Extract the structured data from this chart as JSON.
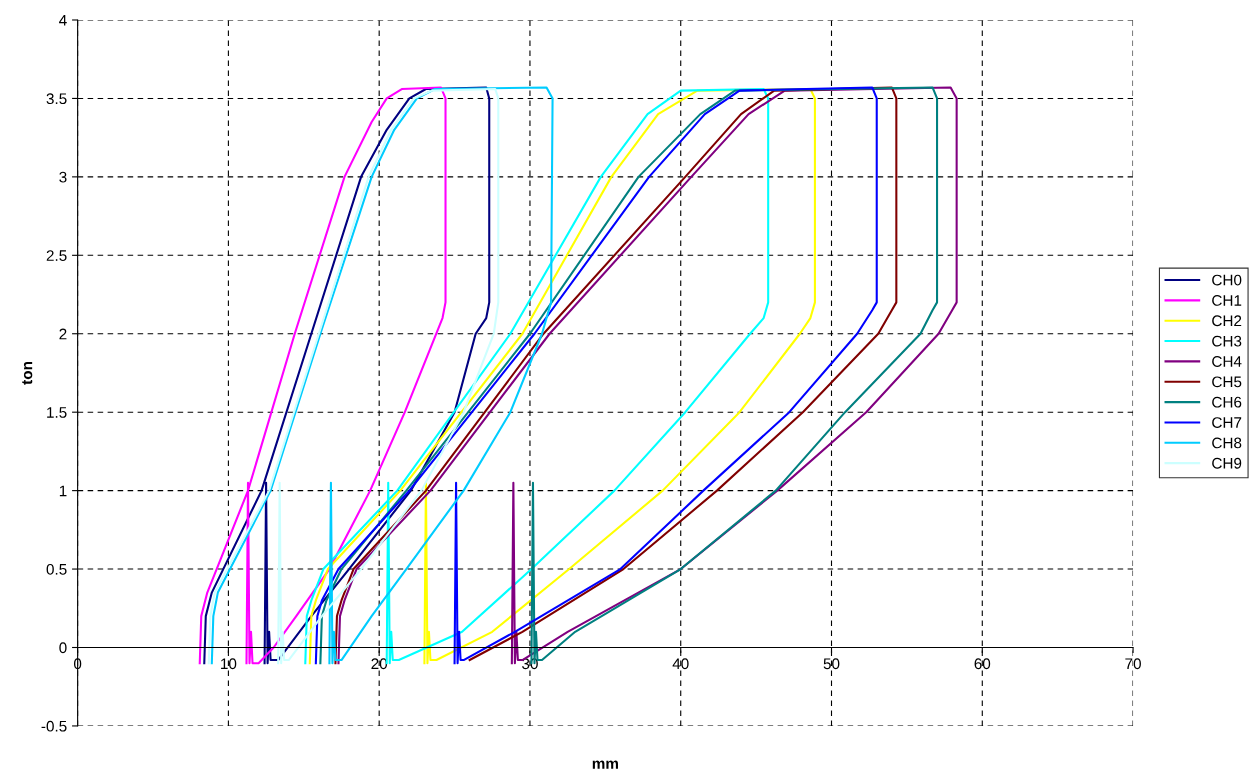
{
  "chart_data": {
    "type": "line",
    "xlabel": "mm",
    "ylabel": "ton",
    "xlim": [
      0,
      70
    ],
    "ylim": [
      -0.5,
      4
    ],
    "xticks": [
      0,
      10,
      20,
      30,
      40,
      50,
      60,
      70
    ],
    "yticks": [
      -0.5,
      0,
      0.5,
      1,
      1.5,
      2,
      2.5,
      3,
      3.5,
      4
    ],
    "grid": true,
    "legend": "right",
    "marker": "none",
    "line_style": "solid",
    "series": [
      {
        "name": "CH0",
        "color": "#000080",
        "x": [
          8.4,
          8.5,
          8.9,
          12.2,
          15.5,
          18.8,
          20.5,
          22,
          23.1,
          27.1,
          27.3,
          27.3,
          27.1,
          26.4,
          25.0,
          22.1,
          18.0,
          15.5,
          13.3,
          12.8,
          12.7,
          12.6,
          12.5,
          12.4
        ],
        "values": [
          -0.1,
          0.2,
          0.35,
          1,
          2,
          3,
          3.3,
          3.5,
          3.56,
          3.57,
          3.5,
          2.2,
          2.1,
          2.0,
          1.5,
          1,
          0.5,
          0.2,
          -0.08,
          -0.08,
          0.1,
          -0.1,
          1.05,
          -0.1
        ]
      },
      {
        "name": "CH1",
        "color": "#ff00ff",
        "x": [
          8.1,
          8.2,
          8.6,
          11.3,
          14.4,
          17.7,
          19.5,
          20.5,
          21.5,
          24.1,
          24.4,
          24.4,
          24.2,
          21.7,
          19.4,
          16.7,
          14.5,
          13,
          12,
          11.6,
          11.5,
          11.4,
          11.3,
          11.2
        ],
        "values": [
          -0.1,
          0.2,
          0.35,
          1,
          2,
          3,
          3.35,
          3.5,
          3.56,
          3.57,
          3.5,
          2.2,
          2.1,
          1.5,
          1,
          0.5,
          0.2,
          0,
          -0.1,
          -0.1,
          0.1,
          -0.1,
          1.05,
          -0.1
        ]
      },
      {
        "name": "CH2",
        "color": "#ffff00",
        "x": [
          15.4,
          15.5,
          15.8,
          16.6,
          21.4,
          29.5,
          35.4,
          38.5,
          41.1,
          48.6,
          48.9,
          48.9,
          48.6,
          47.9,
          43.9,
          38.8,
          32.6,
          27.5,
          23.8,
          23.4,
          23.3,
          23.2,
          23.1,
          23.0
        ],
        "values": [
          -0.1,
          0.2,
          0.3,
          0.5,
          1,
          2,
          3,
          3.4,
          3.55,
          3.56,
          3.5,
          2.2,
          2.1,
          2.0,
          1.5,
          1,
          0.5,
          0.1,
          -0.08,
          -0.08,
          0.1,
          -0.1,
          1.05,
          -0.1
        ]
      },
      {
        "name": "CH3",
        "color": "#00ffff",
        "x": [
          15.1,
          15.2,
          15.5,
          16.3,
          21.2,
          28.7,
          34.7,
          37.8,
          40.0,
          45.5,
          45.8,
          45.8,
          45.5,
          44.6,
          40.3,
          35.6,
          30.1,
          25.5,
          21.3,
          20.9,
          20.8,
          20.7,
          20.6,
          20.5
        ],
        "values": [
          -0.1,
          0.2,
          0.3,
          0.5,
          1,
          2,
          3,
          3.4,
          3.55,
          3.56,
          3.5,
          2.2,
          2.1,
          2.0,
          1.5,
          1,
          0.5,
          0.1,
          -0.08,
          -0.08,
          0.1,
          -0.1,
          1.05,
          -0.1
        ]
      },
      {
        "name": "CH4",
        "color": "#800080",
        "x": [
          17.3,
          17.4,
          17.7,
          18.5,
          23.4,
          31.3,
          40.7,
          44.5,
          46.9,
          57.9,
          58.3,
          58.3,
          58.0,
          57.1,
          52.3,
          46.4,
          40.0,
          32.5,
          29.5,
          29.2,
          29.1,
          29.0,
          28.9,
          28.8
        ],
        "values": [
          -0.1,
          0.2,
          0.3,
          0.5,
          1,
          2,
          3,
          3.4,
          3.55,
          3.57,
          3.5,
          2.2,
          2.15,
          2.0,
          1.5,
          1,
          0.5,
          0.1,
          -0.08,
          -0.08,
          0.1,
          -0.1,
          1.05,
          -0.1
        ]
      },
      {
        "name": "CH5",
        "color": "#800000",
        "x": [
          17.1,
          17.2,
          17.5,
          18.3,
          23.1,
          30.9,
          40.3,
          44.0,
          46.2,
          54.0,
          54.3,
          54.3,
          54.0,
          53.1,
          48.1,
          42.4,
          36.2,
          29.5,
          26.0
        ],
        "values": [
          -0.1,
          0.2,
          0.3,
          0.5,
          1,
          2,
          3,
          3.4,
          3.55,
          3.57,
          3.5,
          2.2,
          2.15,
          2.0,
          1.5,
          1,
          0.5,
          0.1,
          -0.08
        ]
      },
      {
        "name": "CH6",
        "color": "#008080",
        "x": [
          16.1,
          16.2,
          16.5,
          17.5,
          21.8,
          30.0,
          37.2,
          41.3,
          43.6,
          56.7,
          57.0,
          57.0,
          56.7,
          55.9,
          50.9,
          46.3,
          40.0,
          33.0,
          30.8,
          30.5,
          30.4,
          30.3,
          30.2,
          30.1
        ],
        "values": [
          -0.1,
          0.2,
          0.3,
          0.5,
          1,
          2,
          3,
          3.4,
          3.55,
          3.57,
          3.5,
          2.2,
          2.15,
          2.0,
          1.5,
          1,
          0.5,
          0.1,
          -0.08,
          -0.08,
          0.1,
          -0.1,
          1.05,
          -0.1
        ]
      },
      {
        "name": "CH7",
        "color": "#0000ff",
        "x": [
          15.8,
          15.9,
          16.2,
          17.3,
          22.0,
          30.3,
          37.9,
          41.6,
          43.9,
          52.7,
          53.0,
          53.0,
          52.7,
          51.7,
          47.2,
          41.5,
          36.0,
          29.0,
          25.6,
          25.4,
          25.3,
          25.2,
          25.1,
          25.0
        ],
        "values": [
          -0.1,
          0.2,
          0.3,
          0.5,
          1,
          2,
          3,
          3.4,
          3.55,
          3.57,
          3.5,
          2.2,
          2.15,
          2.0,
          1.5,
          1,
          0.5,
          0.1,
          -0.08,
          -0.08,
          0.1,
          -0.1,
          1.05,
          -0.1
        ]
      },
      {
        "name": "CH8",
        "color": "#00ccff",
        "x": [
          8.9,
          9.0,
          9.3,
          12.8,
          16.1,
          19.5,
          21,
          22.5,
          23.7,
          31.1,
          31.5,
          31.4,
          31.1,
          30.8,
          28.7,
          25.6,
          21.8,
          19.5,
          17.5,
          17.1,
          17.0,
          16.9,
          16.8,
          16.7
        ],
        "values": [
          -0.1,
          0.2,
          0.35,
          1,
          2,
          3,
          3.3,
          3.5,
          3.56,
          3.57,
          3.5,
          2.2,
          2.1,
          2.0,
          1.5,
          1,
          0.5,
          0.2,
          -0.08,
          -0.08,
          0.1,
          -0.1,
          1.05,
          -0.1
        ]
      },
      {
        "name": "CH9",
        "color": "#ccffff",
        "x": [
          8.7,
          8.8,
          9.1,
          12.7,
          16.0,
          19.3,
          20.8,
          22.3,
          23.5,
          27.7,
          27.9,
          27.9,
          27.6,
          25.6,
          22.8,
          18.8,
          16.2,
          14.0,
          13.7,
          13.6,
          13.5,
          13.4,
          13.3
        ],
        "values": [
          -0.1,
          0.2,
          0.35,
          1,
          2,
          3,
          3.3,
          3.5,
          3.55,
          3.56,
          3.5,
          2.2,
          2.0,
          1.5,
          1,
          0.5,
          0.2,
          -0.08,
          -0.08,
          0.1,
          -0.1,
          1.05,
          -0.1
        ]
      }
    ]
  }
}
